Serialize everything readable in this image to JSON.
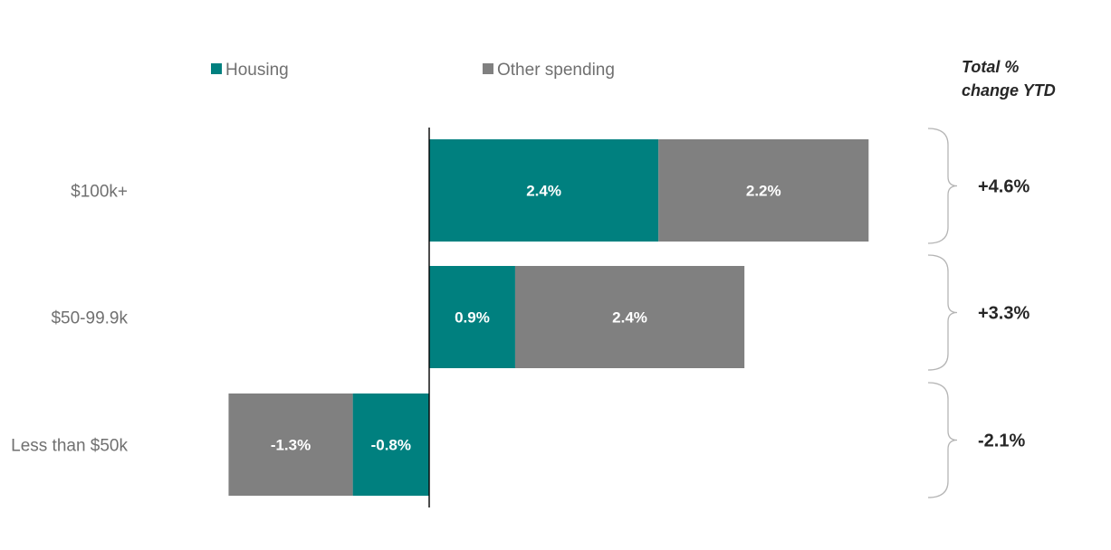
{
  "chart_data": {
    "type": "bar",
    "orientation": "horizontal",
    "stacked": true,
    "title": "",
    "xlabel": "",
    "ylabel": "",
    "categories": [
      "$100k+",
      "$50-99.9k",
      "Less than $50k"
    ],
    "series": [
      {
        "name": "Housing",
        "color": "#00807f",
        "values": [
          2.4,
          0.9,
          -0.8
        ],
        "labels": [
          "2.4%",
          "0.9%",
          "-0.8%"
        ]
      },
      {
        "name": "Other spending",
        "color": "#808080",
        "values": [
          2.2,
          2.4,
          -1.3
        ],
        "labels": [
          "2.2%",
          "2.4%",
          "-1.3%"
        ]
      }
    ],
    "totals": {
      "header": [
        "Total %",
        "change YTD"
      ],
      "values": [
        "+4.6%",
        "+3.3%",
        "-2.1%"
      ]
    },
    "grid": false,
    "legend_position": "top"
  }
}
